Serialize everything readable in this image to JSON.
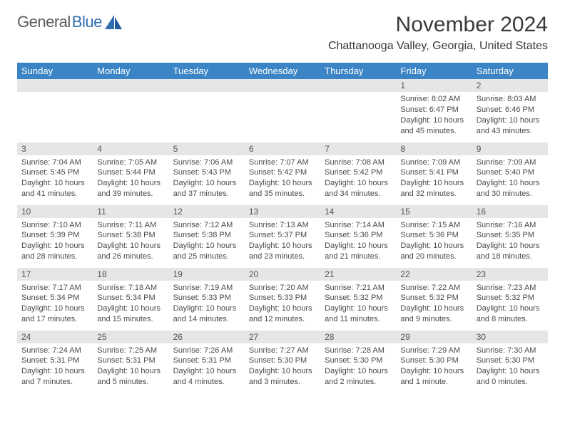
{
  "logo": {
    "text1": "General",
    "text2": "Blue"
  },
  "title": "November 2024",
  "location": "Chattanooga Valley, Georgia, United States",
  "colors": {
    "header_bg": "#3b85c6",
    "header_fg": "#ffffff",
    "daynum_bg": "#e6e6e6",
    "text": "#3a3a3a",
    "body_text": "#4a4a4a",
    "logo_gray": "#5a5a5a",
    "logo_blue": "#2f6fb0",
    "background": "#ffffff"
  },
  "typography": {
    "title_size": 30,
    "location_size": 16,
    "weekday_size": 13,
    "daynum_size": 12,
    "body_size": 11
  },
  "weekdays": [
    "Sunday",
    "Monday",
    "Tuesday",
    "Wednesday",
    "Thursday",
    "Friday",
    "Saturday"
  ],
  "weeks": [
    [
      {
        "n": ""
      },
      {
        "n": ""
      },
      {
        "n": ""
      },
      {
        "n": ""
      },
      {
        "n": ""
      },
      {
        "n": "1",
        "sunrise": "Sunrise: 8:02 AM",
        "sunset": "Sunset: 6:47 PM",
        "daylight1": "Daylight: 10 hours",
        "daylight2": "and 45 minutes."
      },
      {
        "n": "2",
        "sunrise": "Sunrise: 8:03 AM",
        "sunset": "Sunset: 6:46 PM",
        "daylight1": "Daylight: 10 hours",
        "daylight2": "and 43 minutes."
      }
    ],
    [
      {
        "n": "3",
        "sunrise": "Sunrise: 7:04 AM",
        "sunset": "Sunset: 5:45 PM",
        "daylight1": "Daylight: 10 hours",
        "daylight2": "and 41 minutes."
      },
      {
        "n": "4",
        "sunrise": "Sunrise: 7:05 AM",
        "sunset": "Sunset: 5:44 PM",
        "daylight1": "Daylight: 10 hours",
        "daylight2": "and 39 minutes."
      },
      {
        "n": "5",
        "sunrise": "Sunrise: 7:06 AM",
        "sunset": "Sunset: 5:43 PM",
        "daylight1": "Daylight: 10 hours",
        "daylight2": "and 37 minutes."
      },
      {
        "n": "6",
        "sunrise": "Sunrise: 7:07 AM",
        "sunset": "Sunset: 5:42 PM",
        "daylight1": "Daylight: 10 hours",
        "daylight2": "and 35 minutes."
      },
      {
        "n": "7",
        "sunrise": "Sunrise: 7:08 AM",
        "sunset": "Sunset: 5:42 PM",
        "daylight1": "Daylight: 10 hours",
        "daylight2": "and 34 minutes."
      },
      {
        "n": "8",
        "sunrise": "Sunrise: 7:09 AM",
        "sunset": "Sunset: 5:41 PM",
        "daylight1": "Daylight: 10 hours",
        "daylight2": "and 32 minutes."
      },
      {
        "n": "9",
        "sunrise": "Sunrise: 7:09 AM",
        "sunset": "Sunset: 5:40 PM",
        "daylight1": "Daylight: 10 hours",
        "daylight2": "and 30 minutes."
      }
    ],
    [
      {
        "n": "10",
        "sunrise": "Sunrise: 7:10 AM",
        "sunset": "Sunset: 5:39 PM",
        "daylight1": "Daylight: 10 hours",
        "daylight2": "and 28 minutes."
      },
      {
        "n": "11",
        "sunrise": "Sunrise: 7:11 AM",
        "sunset": "Sunset: 5:38 PM",
        "daylight1": "Daylight: 10 hours",
        "daylight2": "and 26 minutes."
      },
      {
        "n": "12",
        "sunrise": "Sunrise: 7:12 AM",
        "sunset": "Sunset: 5:38 PM",
        "daylight1": "Daylight: 10 hours",
        "daylight2": "and 25 minutes."
      },
      {
        "n": "13",
        "sunrise": "Sunrise: 7:13 AM",
        "sunset": "Sunset: 5:37 PM",
        "daylight1": "Daylight: 10 hours",
        "daylight2": "and 23 minutes."
      },
      {
        "n": "14",
        "sunrise": "Sunrise: 7:14 AM",
        "sunset": "Sunset: 5:36 PM",
        "daylight1": "Daylight: 10 hours",
        "daylight2": "and 21 minutes."
      },
      {
        "n": "15",
        "sunrise": "Sunrise: 7:15 AM",
        "sunset": "Sunset: 5:36 PM",
        "daylight1": "Daylight: 10 hours",
        "daylight2": "and 20 minutes."
      },
      {
        "n": "16",
        "sunrise": "Sunrise: 7:16 AM",
        "sunset": "Sunset: 5:35 PM",
        "daylight1": "Daylight: 10 hours",
        "daylight2": "and 18 minutes."
      }
    ],
    [
      {
        "n": "17",
        "sunrise": "Sunrise: 7:17 AM",
        "sunset": "Sunset: 5:34 PM",
        "daylight1": "Daylight: 10 hours",
        "daylight2": "and 17 minutes."
      },
      {
        "n": "18",
        "sunrise": "Sunrise: 7:18 AM",
        "sunset": "Sunset: 5:34 PM",
        "daylight1": "Daylight: 10 hours",
        "daylight2": "and 15 minutes."
      },
      {
        "n": "19",
        "sunrise": "Sunrise: 7:19 AM",
        "sunset": "Sunset: 5:33 PM",
        "daylight1": "Daylight: 10 hours",
        "daylight2": "and 14 minutes."
      },
      {
        "n": "20",
        "sunrise": "Sunrise: 7:20 AM",
        "sunset": "Sunset: 5:33 PM",
        "daylight1": "Daylight: 10 hours",
        "daylight2": "and 12 minutes."
      },
      {
        "n": "21",
        "sunrise": "Sunrise: 7:21 AM",
        "sunset": "Sunset: 5:32 PM",
        "daylight1": "Daylight: 10 hours",
        "daylight2": "and 11 minutes."
      },
      {
        "n": "22",
        "sunrise": "Sunrise: 7:22 AM",
        "sunset": "Sunset: 5:32 PM",
        "daylight1": "Daylight: 10 hours",
        "daylight2": "and 9 minutes."
      },
      {
        "n": "23",
        "sunrise": "Sunrise: 7:23 AM",
        "sunset": "Sunset: 5:32 PM",
        "daylight1": "Daylight: 10 hours",
        "daylight2": "and 8 minutes."
      }
    ],
    [
      {
        "n": "24",
        "sunrise": "Sunrise: 7:24 AM",
        "sunset": "Sunset: 5:31 PM",
        "daylight1": "Daylight: 10 hours",
        "daylight2": "and 7 minutes."
      },
      {
        "n": "25",
        "sunrise": "Sunrise: 7:25 AM",
        "sunset": "Sunset: 5:31 PM",
        "daylight1": "Daylight: 10 hours",
        "daylight2": "and 5 minutes."
      },
      {
        "n": "26",
        "sunrise": "Sunrise: 7:26 AM",
        "sunset": "Sunset: 5:31 PM",
        "daylight1": "Daylight: 10 hours",
        "daylight2": "and 4 minutes."
      },
      {
        "n": "27",
        "sunrise": "Sunrise: 7:27 AM",
        "sunset": "Sunset: 5:30 PM",
        "daylight1": "Daylight: 10 hours",
        "daylight2": "and 3 minutes."
      },
      {
        "n": "28",
        "sunrise": "Sunrise: 7:28 AM",
        "sunset": "Sunset: 5:30 PM",
        "daylight1": "Daylight: 10 hours",
        "daylight2": "and 2 minutes."
      },
      {
        "n": "29",
        "sunrise": "Sunrise: 7:29 AM",
        "sunset": "Sunset: 5:30 PM",
        "daylight1": "Daylight: 10 hours",
        "daylight2": "and 1 minute."
      },
      {
        "n": "30",
        "sunrise": "Sunrise: 7:30 AM",
        "sunset": "Sunset: 5:30 PM",
        "daylight1": "Daylight: 10 hours",
        "daylight2": "and 0 minutes."
      }
    ]
  ]
}
